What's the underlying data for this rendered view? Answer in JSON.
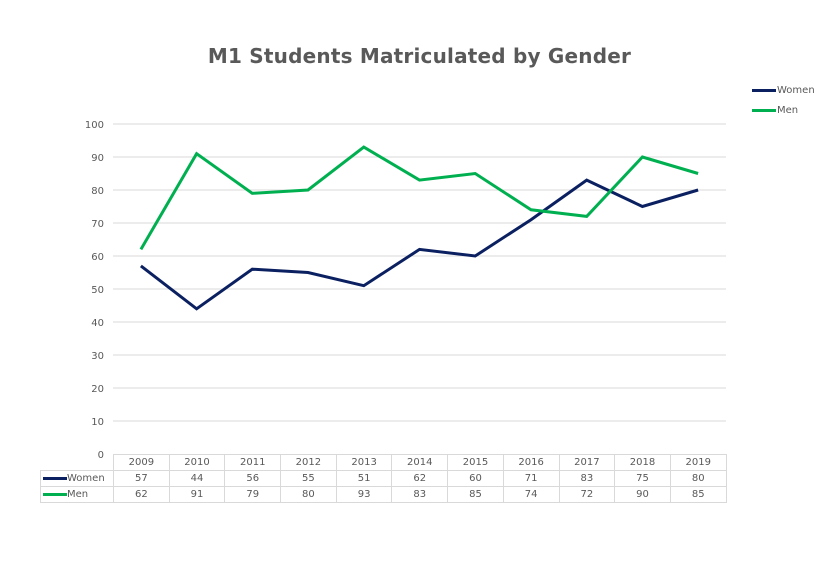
{
  "chart_data": {
    "type": "line",
    "title": "M1 Students Matriculated by Gender",
    "xlabel": "",
    "ylabel": "",
    "categories": [
      "2009",
      "2010",
      "2011",
      "2012",
      "2013",
      "2014",
      "2015",
      "2016",
      "2017",
      "2018",
      "2019"
    ],
    "series": [
      {
        "name": "Women",
        "color": "#0b2060",
        "values": [
          57,
          44,
          56,
          55,
          51,
          62,
          60,
          71,
          83,
          75,
          80
        ]
      },
      {
        "name": "Men",
        "color": "#00b050",
        "values": [
          62,
          91,
          79,
          80,
          93,
          83,
          85,
          74,
          72,
          90,
          85
        ]
      }
    ],
    "ylim": [
      0,
      100
    ],
    "yticks": [
      0,
      10,
      20,
      30,
      40,
      50,
      60,
      70,
      80,
      90,
      100
    ],
    "grid": true,
    "legend_position": "top-right",
    "data_table": true
  },
  "title": "M1 Students Matriculated by Gender",
  "legend": {
    "items": [
      {
        "label": "Women",
        "color": "#0b2060"
      },
      {
        "label": "Men",
        "color": "#00b050"
      }
    ]
  },
  "table": {
    "header": [
      "2009",
      "2010",
      "2011",
      "2012",
      "2013",
      "2014",
      "2015",
      "2016",
      "2017",
      "2018",
      "2019"
    ],
    "rows": [
      {
        "label": "Women",
        "color": "#0b2060",
        "values": [
          "57",
          "44",
          "56",
          "55",
          "51",
          "62",
          "60",
          "71",
          "83",
          "75",
          "80"
        ]
      },
      {
        "label": "Men",
        "color": "#00b050",
        "values": [
          "62",
          "91",
          "79",
          "80",
          "93",
          "83",
          "85",
          "74",
          "72",
          "90",
          "85"
        ]
      }
    ]
  },
  "colors": {
    "gridline": "#d9d9d9",
    "text": "#595959"
  }
}
